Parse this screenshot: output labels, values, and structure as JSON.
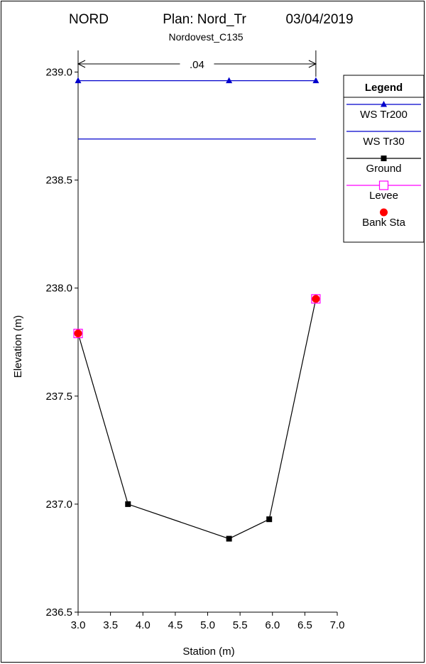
{
  "chart_data": {
    "type": "line",
    "title": "NORD",
    "plan": "Plan: Nord_Tr",
    "date": "03/04/2019",
    "subtitle": "Nordovest_C135",
    "xlabel": "Station (m)",
    "ylabel": "Elevation (m)",
    "xlim": [
      3.0,
      7.0
    ],
    "ylim": [
      236.5,
      239.1
    ],
    "x_ticks": [
      "3.0",
      "3.5",
      "4.0",
      "4.5",
      "5.0",
      "5.5",
      "6.0",
      "6.5",
      "7.0"
    ],
    "y_ticks": [
      "236.5",
      "237.0",
      "237.5",
      "238.0",
      "238.5",
      "239.0"
    ],
    "manning_label": ".04",
    "manning_range": [
      3.0,
      6.67
    ],
    "legend_position": "top-right",
    "legend": {
      "title": "Legend",
      "items": [
        {
          "label": "WS Tr200",
          "color": "#0000cc",
          "marker": "triangle"
        },
        {
          "label": "WS Tr30",
          "color": "#0000cc",
          "marker": "none"
        },
        {
          "label": "Ground",
          "color": "#000000",
          "marker": "square"
        },
        {
          "label": "Levee",
          "color": "#ff00ff",
          "marker": "open-square"
        },
        {
          "label": "Bank Sta",
          "color": "#ff0000",
          "marker": "circle"
        }
      ]
    },
    "series": [
      {
        "name": "WS Tr200",
        "color": "#0000cc",
        "x": [
          3.0,
          5.33,
          6.67
        ],
        "y": [
          238.96,
          238.96,
          238.96
        ]
      },
      {
        "name": "WS Tr30",
        "color": "#0000cc",
        "x": [
          3.0,
          6.67
        ],
        "y": [
          238.69,
          238.69
        ]
      },
      {
        "name": "Ground",
        "color": "#000000",
        "x": [
          3.0,
          3.77,
          5.33,
          5.95,
          6.67
        ],
        "y": [
          237.79,
          237.0,
          236.84,
          236.93,
          237.95
        ]
      },
      {
        "name": "Levee",
        "color": "#ff00ff",
        "x": [
          3.0,
          6.67
        ],
        "y": [
          237.79,
          237.95
        ]
      },
      {
        "name": "Bank Sta",
        "color": "#ff0000",
        "x": [
          3.0,
          6.67
        ],
        "y": [
          237.79,
          237.95
        ]
      }
    ]
  }
}
